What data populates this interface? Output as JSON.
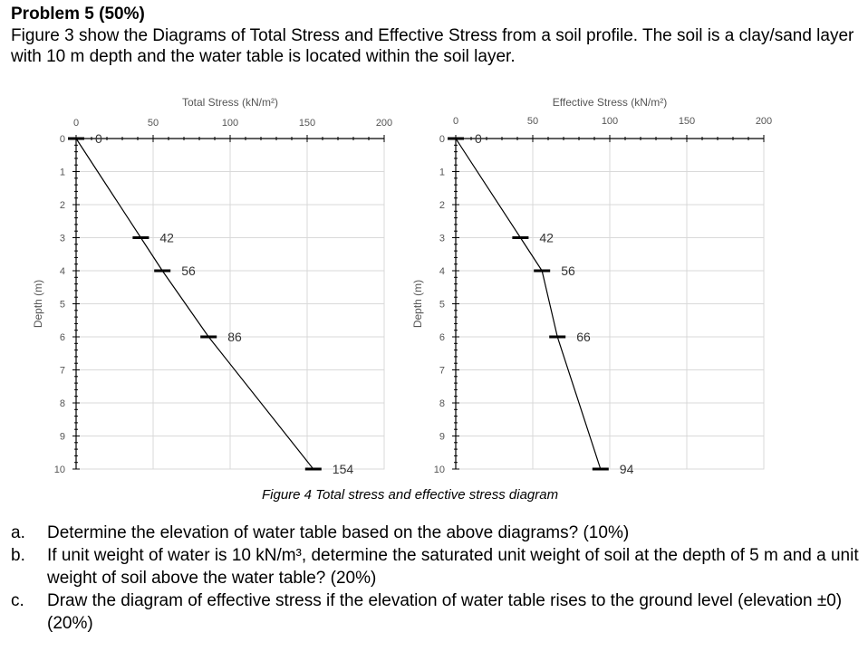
{
  "header": {
    "title": "Problem 5 (50%)",
    "intro": "Figure 3 show the Diagrams of Total Stress and Effective Stress from a soil profile. The soil is a clay/sand layer with 10 m depth and the water table is located within the soil layer."
  },
  "chart_data": [
    {
      "type": "line",
      "title": "Total Stress (kN/m²)",
      "xlabel": "Total Stress (kN/m²)",
      "ylabel": "Depth (m)",
      "xlim": [
        0,
        200
      ],
      "ylim": [
        0,
        10
      ],
      "x_ticks": [
        "0",
        "50",
        "100",
        "150",
        "200"
      ],
      "y_ticks": [
        "0",
        "1",
        "2",
        "3",
        "4",
        "5",
        "6",
        "7",
        "8",
        "9",
        "10"
      ],
      "grid": true,
      "x_axis_position": "top",
      "series": [
        {
          "x": [
            0,
            42,
            56,
            86,
            154
          ],
          "y": [
            0,
            3,
            4,
            6,
            10
          ]
        }
      ],
      "point_labels": [
        "0",
        "42",
        "56",
        "86",
        "154"
      ]
    },
    {
      "type": "line",
      "title": "Effective Stress (kN/m²)",
      "xlabel": "Effective Stress (kN/m²)",
      "ylabel": "Depth (m)",
      "xlim": [
        0,
        200
      ],
      "ylim": [
        0,
        10
      ],
      "x_ticks": [
        "0",
        "50",
        "100",
        "150",
        "200"
      ],
      "y_ticks": [
        "0",
        "1",
        "2",
        "3",
        "4",
        "5",
        "6",
        "7",
        "8",
        "9",
        "10"
      ],
      "grid": true,
      "x_axis_position": "top",
      "series": [
        {
          "x": [
            0,
            42,
            56,
            66,
            94
          ],
          "y": [
            0,
            3,
            4,
            6,
            10
          ]
        }
      ],
      "point_labels": [
        "0",
        "42",
        "56",
        "66",
        "94"
      ]
    }
  ],
  "figure": {
    "caption": "Figure 4 Total stress and effective stress diagram"
  },
  "questions": [
    {
      "label": "a.",
      "text": "Determine the elevation of water table based on the above diagrams? (10%)"
    },
    {
      "label": "b.",
      "text": "If unit weight of water is 10 kN/m³, determine the saturated unit weight of soil at the depth of 5 m and a unit weight of soil above the water table? (20%)"
    },
    {
      "label": "c.",
      "text": "Draw the diagram of effective stress if the elevation of water table rises to the ground level (elevation ±0) (20%)"
    }
  ]
}
